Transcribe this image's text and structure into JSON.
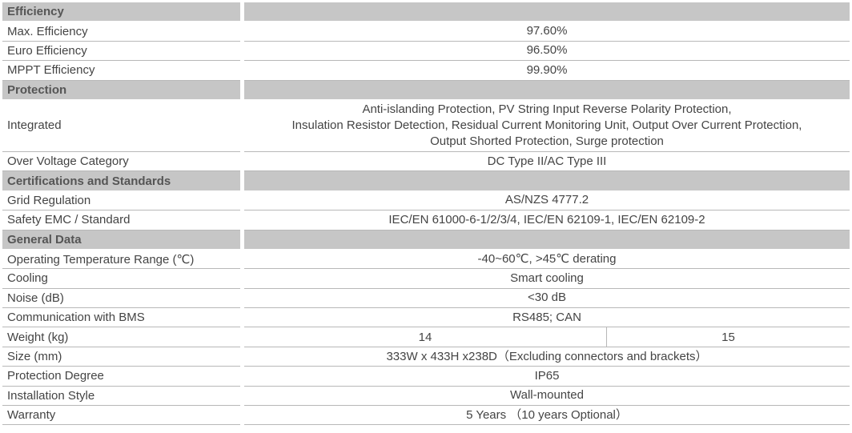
{
  "sections": [
    {
      "title": "Efficiency",
      "rows": [
        {
          "label": "Max. Efficiency",
          "value": "97.60%"
        },
        {
          "label": "Euro Efficiency",
          "value": "96.50%"
        },
        {
          "label": "MPPT Efficiency",
          "value": "99.90%"
        }
      ]
    },
    {
      "title": "Protection",
      "rows": [
        {
          "label": "Integrated",
          "lines": [
            "Anti-islanding Protection, PV String Input Reverse Polarity Protection,",
            "Insulation Resistor Detection, Residual Current Monitoring Unit, Output Over Current Protection,",
            "Output Shorted Protection, Surge protection"
          ]
        },
        {
          "label": "Over Voltage Category",
          "value": "DC Type II/AC Type III"
        }
      ]
    },
    {
      "title": "Certifications and Standards",
      "rows": [
        {
          "label": "Grid Regulation",
          "value": "AS/NZS 4777.2"
        },
        {
          "label": "Safety EMC / Standard",
          "value": "IEC/EN 61000-6-1/2/3/4, IEC/EN 62109-1, IEC/EN 62109-2"
        }
      ]
    },
    {
      "title": "General Data",
      "rows": [
        {
          "label": "Operating Temperature Range (℃)",
          "value": "-40~60℃, >45℃ derating"
        },
        {
          "label": "Cooling",
          "value": "Smart cooling"
        },
        {
          "label": "Noise (dB)",
          "value": "<30 dB"
        },
        {
          "label": "Communication with BMS",
          "value": "RS485; CAN"
        },
        {
          "label": "Weight (kg)",
          "values": [
            "14",
            "15"
          ]
        },
        {
          "label": "Size (mm)",
          "value": "333W x 433H x238D（Excluding connectors and brackets）"
        },
        {
          "label": "Protection Degree",
          "value": "IP65"
        },
        {
          "label": "Installation Style",
          "value": "Wall-mounted"
        },
        {
          "label": "Warranty",
          "value": "5 Years （10 years Optional）"
        }
      ]
    }
  ]
}
